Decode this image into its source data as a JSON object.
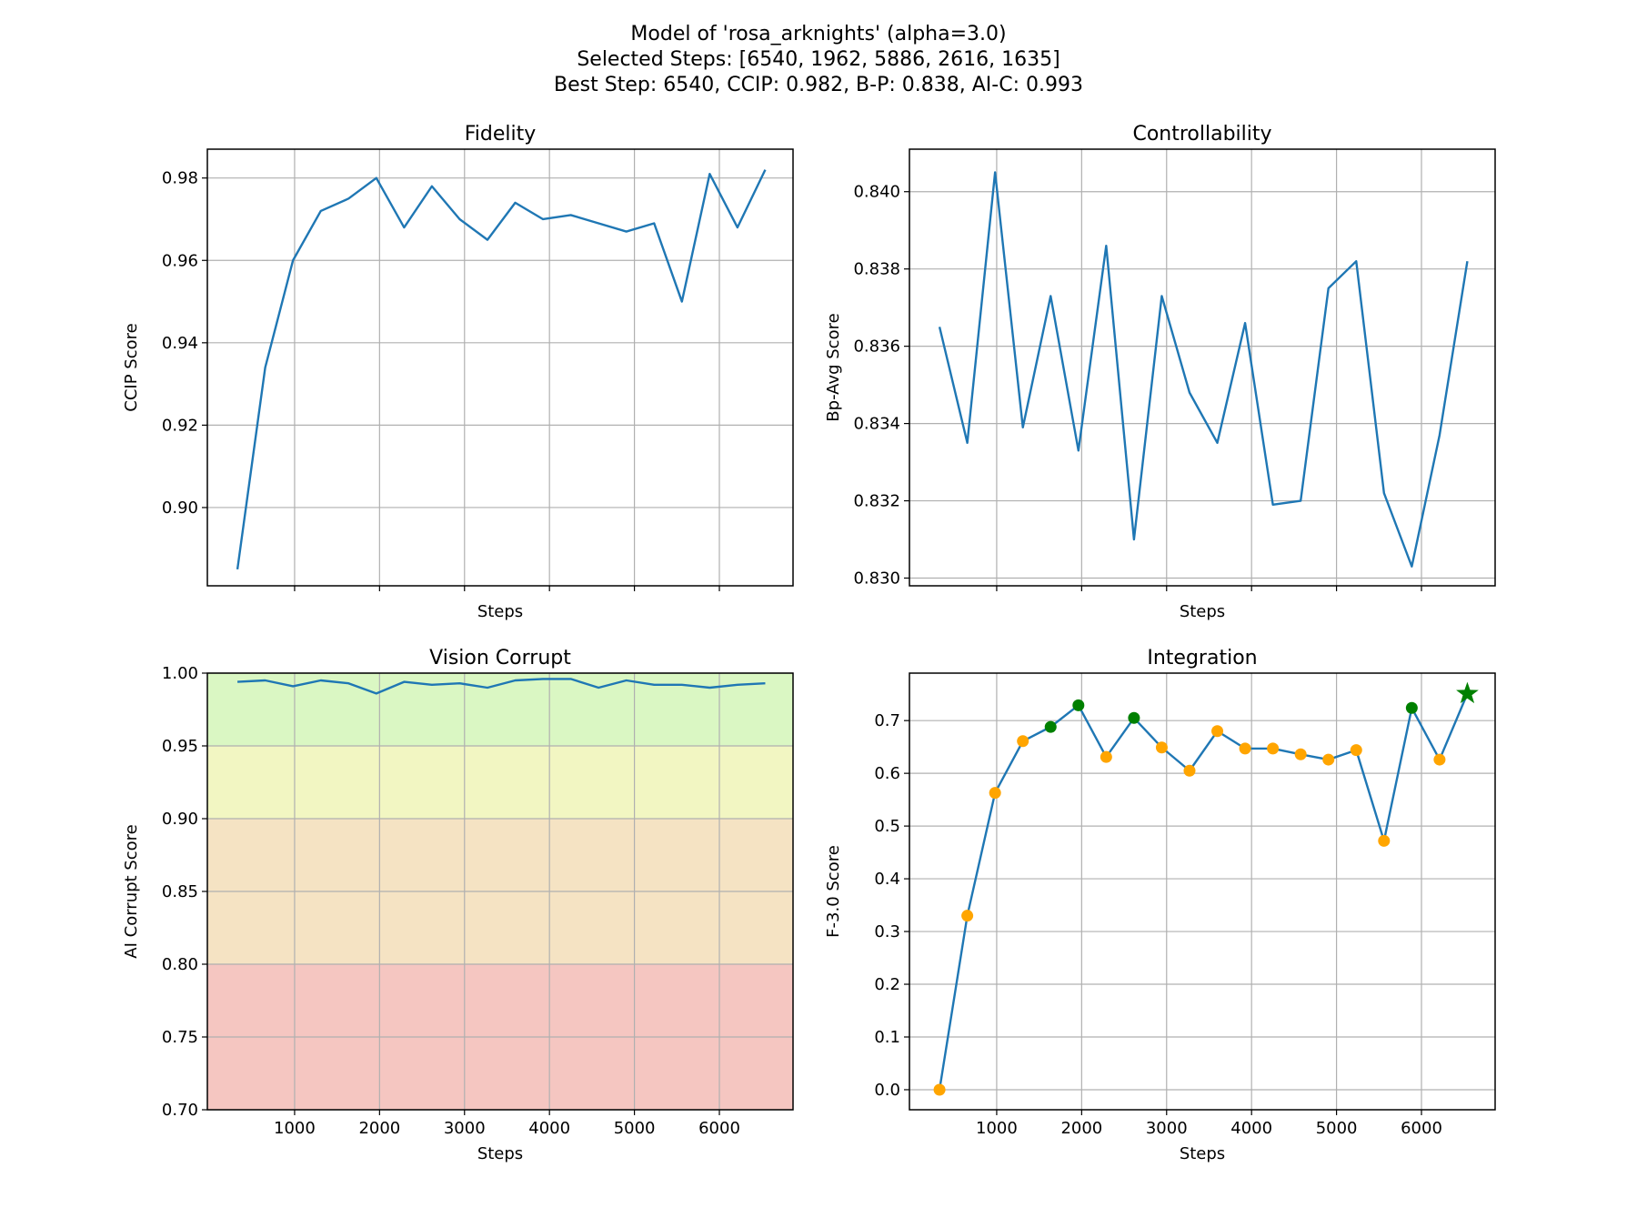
{
  "figure": {
    "title_lines": [
      "Model of 'rosa_arknights' (alpha=3.0)",
      "Selected Steps: [6540, 1962, 5886, 2616, 1635]",
      "Best Step: 6540, CCIP: 0.982, B-P: 0.838, AI-C: 0.993"
    ]
  },
  "colors": {
    "line": "#1f77b4",
    "grid": "#b0b0b0",
    "point_normal": "#ffa500",
    "point_selected": "#008000",
    "best_marker": "#008000",
    "band_green": "#daf7c3",
    "band_yellow": "#f2f6c2",
    "band_orange": "#f5e3c3",
    "band_red": "#f5c6c1"
  },
  "chart_data": [
    {
      "type": "line",
      "title": "Fidelity",
      "xlabel": "Steps",
      "ylabel": "CCIP Score",
      "xlim": [
        -27,
        6867
      ],
      "ylim": [
        0.881,
        0.987
      ],
      "xticks": [
        1000,
        2000,
        3000,
        4000,
        5000,
        6000
      ],
      "show_xtick_labels": false,
      "yticks": [
        0.9,
        0.92,
        0.94,
        0.96,
        0.98
      ],
      "ytick_labels": [
        "0.90",
        "0.92",
        "0.94",
        "0.96",
        "0.98"
      ],
      "grid": true,
      "x": [
        327,
        654,
        981,
        1308,
        1635,
        1962,
        2289,
        2616,
        2943,
        3270,
        3597,
        3924,
        4251,
        4578,
        4905,
        5232,
        5559,
        5886,
        6213,
        6540
      ],
      "series": [
        {
          "values": [
            0.885,
            0.934,
            0.96,
            0.972,
            0.975,
            0.98,
            0.968,
            0.978,
            0.97,
            0.965,
            0.974,
            0.97,
            0.971,
            0.969,
            0.967,
            0.969,
            0.95,
            0.981,
            0.968,
            0.982
          ]
        }
      ]
    },
    {
      "type": "line",
      "title": "Controllability",
      "xlabel": "Steps",
      "ylabel": "Bp-Avg Score",
      "xlim": [
        -27,
        6867
      ],
      "ylim": [
        0.8298,
        0.8411
      ],
      "xticks": [
        1000,
        2000,
        3000,
        4000,
        5000,
        6000
      ],
      "show_xtick_labels": false,
      "yticks": [
        0.83,
        0.832,
        0.834,
        0.836,
        0.838,
        0.84
      ],
      "ytick_labels": [
        "0.830",
        "0.832",
        "0.834",
        "0.836",
        "0.838",
        "0.840"
      ],
      "grid": true,
      "x": [
        327,
        654,
        981,
        1308,
        1635,
        1962,
        2289,
        2616,
        2943,
        3270,
        3597,
        3924,
        4251,
        4578,
        4905,
        5232,
        5559,
        5886,
        6213,
        6540
      ],
      "series": [
        {
          "values": [
            0.8365,
            0.8335,
            0.8405,
            0.8339,
            0.8373,
            0.8333,
            0.8386,
            0.831,
            0.8373,
            0.8348,
            0.8335,
            0.8366,
            0.8319,
            0.832,
            0.8375,
            0.8382,
            0.8322,
            0.8303,
            0.8337,
            0.8382
          ]
        }
      ]
    },
    {
      "type": "line",
      "title": "Vision Corrupt",
      "xlabel": "Steps",
      "ylabel": "AI Corrupt Score",
      "xlim": [
        -27,
        6867
      ],
      "ylim": [
        0.7,
        1.0
      ],
      "xticks": [
        1000,
        2000,
        3000,
        4000,
        5000,
        6000
      ],
      "xtick_labels": [
        "1000",
        "2000",
        "3000",
        "4000",
        "5000",
        "6000"
      ],
      "show_xtick_labels": true,
      "yticks": [
        0.7,
        0.75,
        0.8,
        0.85,
        0.9,
        0.95,
        1.0
      ],
      "ytick_labels": [
        "0.70",
        "0.75",
        "0.80",
        "0.85",
        "0.90",
        "0.95",
        "1.00"
      ],
      "grid": true,
      "bands": [
        {
          "from": 0.95,
          "to": 1.0,
          "color": "band_green"
        },
        {
          "from": 0.9,
          "to": 0.95,
          "color": "band_yellow"
        },
        {
          "from": 0.8,
          "to": 0.9,
          "color": "band_orange"
        },
        {
          "from": 0.7,
          "to": 0.8,
          "color": "band_red"
        }
      ],
      "x": [
        327,
        654,
        981,
        1308,
        1635,
        1962,
        2289,
        2616,
        2943,
        3270,
        3597,
        3924,
        4251,
        4578,
        4905,
        5232,
        5559,
        5886,
        6213,
        6540
      ],
      "series": [
        {
          "values": [
            0.994,
            0.995,
            0.991,
            0.995,
            0.993,
            0.986,
            0.994,
            0.992,
            0.993,
            0.99,
            0.995,
            0.996,
            0.996,
            0.99,
            0.995,
            0.992,
            0.992,
            0.99,
            0.992,
            0.993
          ]
        }
      ]
    },
    {
      "type": "line",
      "title": "Integration",
      "xlabel": "Steps",
      "ylabel": "F-3.0 Score",
      "xlim": [
        -27,
        6867
      ],
      "ylim": [
        -0.038,
        0.79
      ],
      "xticks": [
        1000,
        2000,
        3000,
        4000,
        5000,
        6000
      ],
      "xtick_labels": [
        "1000",
        "2000",
        "3000",
        "4000",
        "5000",
        "6000"
      ],
      "show_xtick_labels": true,
      "yticks": [
        0.0,
        0.1,
        0.2,
        0.3,
        0.4,
        0.5,
        0.6,
        0.7
      ],
      "ytick_labels": [
        "0.0",
        "0.1",
        "0.2",
        "0.3",
        "0.4",
        "0.5",
        "0.6",
        "0.7"
      ],
      "grid": true,
      "x": [
        327,
        654,
        981,
        1308,
        1635,
        1962,
        2289,
        2616,
        2943,
        3270,
        3597,
        3924,
        4251,
        4578,
        4905,
        5232,
        5559,
        5886,
        6213,
        6540
      ],
      "series": [
        {
          "values": [
            0.0,
            0.33,
            0.563,
            0.661,
            0.688,
            0.729,
            0.631,
            0.705,
            0.649,
            0.605,
            0.68,
            0.647,
            0.647,
            0.636,
            0.626,
            0.644,
            0.472,
            0.724,
            0.626,
            0.751
          ]
        }
      ],
      "selected_steps": [
        1635,
        1962,
        2616,
        5886
      ],
      "best_step": 6540
    }
  ]
}
